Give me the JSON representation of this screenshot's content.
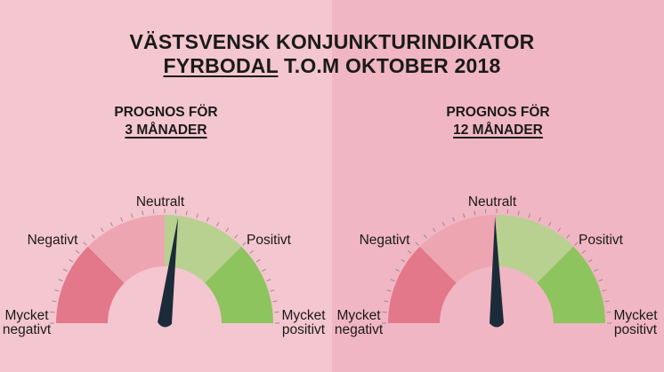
{
  "header": {
    "title_line1": "VÄSTSVENSK KONJUNKTURINDIKATOR",
    "title_region": "FYRBODAL",
    "title_rest": " T.O.M OKTOBER 2018"
  },
  "colors": {
    "background_left": "#f4c6cf",
    "background_right": "#f0b6c3",
    "very_negative": "#e2788a",
    "negative": "#eda6b1",
    "positive": "#b8d190",
    "very_positive": "#8dc45e",
    "needle": "#1c2b3a"
  },
  "chart_data": [
    {
      "type": "gauge",
      "subtitle_line1": "PROGNOS FÖR",
      "subtitle_line2": "3 MÅNADER",
      "value": 0.08,
      "range": [
        -1,
        1
      ],
      "labels": {
        "neutral": "Neutralt",
        "negative": "Negativt",
        "positive": "Positivt",
        "very_negative_1": "Mycket",
        "very_negative_2": "negativt",
        "very_positive_1": "Mycket",
        "very_positive_2": "positivt"
      },
      "zones": [
        "very_negative",
        "negative",
        "positive",
        "very_positive"
      ]
    },
    {
      "type": "gauge",
      "subtitle_line1": "PROGNOS FÖR",
      "subtitle_line2": "12 MÅNADER",
      "value": -0.01,
      "range": [
        -1,
        1
      ],
      "labels": {
        "neutral": "Neutralt",
        "negative": "Negativt",
        "positive": "Positivt",
        "very_negative_1": "Mycket",
        "very_negative_2": "negativt",
        "very_positive_1": "Mycket",
        "very_positive_2": "positivt"
      },
      "zones": [
        "very_negative",
        "negative",
        "positive",
        "very_positive"
      ]
    }
  ]
}
